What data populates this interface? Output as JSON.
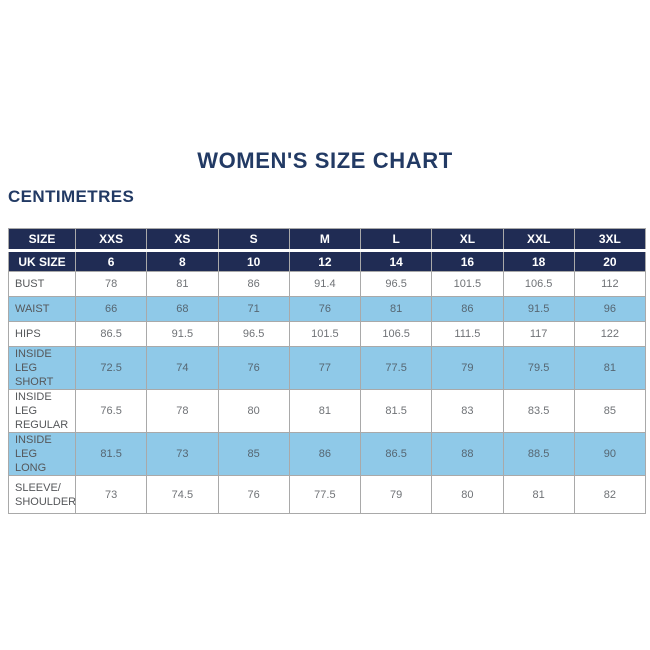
{
  "page": {
    "title": "WOMEN'S SIZE CHART",
    "unit_label": "CENTIMETRES"
  },
  "colors": {
    "navy": "#202C54",
    "text_navy": "#223A64",
    "light_blue": "#8FC9E8",
    "border": "#A9A9A9",
    "data_text": "#6F7276",
    "shaded_text": "#566672",
    "label_text": "#55575A"
  },
  "chart_data": {
    "type": "table",
    "title": "WOMEN'S SIZE CHART",
    "unit": "CENTIMETRES",
    "columns": [
      "SIZE",
      "XXS",
      "XS",
      "S",
      "M",
      "L",
      "XL",
      "XXL",
      "3XL"
    ],
    "uk_size_row": {
      "label": "UK SIZE",
      "values": [
        6,
        8,
        10,
        12,
        14,
        16,
        18,
        20
      ]
    },
    "rows": [
      {
        "label": "BUST",
        "values": [
          78,
          81,
          86,
          91.4,
          96.5,
          101.5,
          106.5,
          112
        ],
        "shaded": false
      },
      {
        "label": "WAIST",
        "values": [
          66,
          68,
          71,
          76,
          81,
          86,
          91.5,
          96
        ],
        "shaded": true
      },
      {
        "label": "HIPS",
        "values": [
          86.5,
          91.5,
          96.5,
          101.5,
          106.5,
          111.5,
          117,
          122
        ],
        "shaded": false
      },
      {
        "label": "INSIDE LEG\nSHORT",
        "values": [
          72.5,
          74,
          76,
          77,
          77.5,
          79,
          79.5,
          81
        ],
        "shaded": true
      },
      {
        "label": "INSIDE LEG\nREGULAR",
        "values": [
          76.5,
          78,
          80,
          81,
          81.5,
          83,
          83.5,
          85
        ],
        "shaded": false
      },
      {
        "label": "INSIDE LEG\nLONG",
        "values": [
          81.5,
          73,
          85,
          86,
          86.5,
          88,
          88.5,
          90
        ],
        "shaded": true
      },
      {
        "label": "SLEEVE/\nSHOULDER",
        "values": [
          73,
          74.5,
          76,
          77.5,
          79,
          80,
          81,
          82
        ],
        "shaded": false
      }
    ]
  }
}
